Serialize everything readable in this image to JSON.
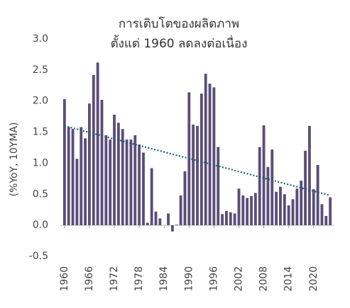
{
  "chart_data": {
    "type": "bar",
    "title": "การเติบโตของผลิตภาพ",
    "subtitle": "ตั้งแต่ 1960 ลดลงต่อเนื่อง",
    "y_label": "(%YoY, 10YMA)",
    "x": [
      1960,
      1961,
      1962,
      1963,
      1964,
      1965,
      1966,
      1967,
      1968,
      1969,
      1970,
      1971,
      1972,
      1973,
      1974,
      1975,
      1976,
      1977,
      1978,
      1979,
      1980,
      1981,
      1982,
      1983,
      1984,
      1985,
      1986,
      1987,
      1988,
      1989,
      1990,
      1991,
      1992,
      1993,
      1994,
      1995,
      1996,
      1997,
      1998,
      1999,
      2000,
      2001,
      2002,
      2003,
      2004,
      2005,
      2006,
      2007,
      2008,
      2009,
      2010,
      2011,
      2012,
      2013,
      2014,
      2015,
      2016,
      2017,
      2018,
      2019,
      2020,
      2021,
      2022,
      2023,
      2024
    ],
    "values": [
      2.03,
      1.58,
      1.55,
      1.07,
      1.58,
      1.4,
      1.96,
      2.42,
      2.62,
      2.02,
      1.45,
      1.38,
      1.78,
      1.65,
      1.55,
      1.38,
      1.38,
      1.45,
      1.3,
      1.17,
      0.04,
      0.92,
      0.22,
      0.11,
      0.0,
      0.19,
      -0.1,
      0.01,
      0.48,
      0.87,
      2.14,
      1.62,
      1.6,
      2.12,
      2.44,
      2.28,
      2.22,
      1.26,
      0.18,
      0.23,
      0.21,
      0.19,
      0.59,
      0.48,
      0.44,
      0.47,
      0.52,
      1.26,
      1.61,
      0.94,
      1.22,
      0.54,
      0.62,
      0.5,
      0.32,
      0.42,
      0.59,
      0.72,
      1.2,
      1.6,
      0.58,
      0.97,
      0.34,
      0.15,
      0.45
    ],
    "color": "#5a4e78",
    "trend": {
      "x": [
        1960,
        2024
      ],
      "values": [
        1.6,
        0.48
      ],
      "color": "#1e5f78"
    },
    "xlim": [
      1959,
      2025
    ],
    "xticks": [
      1960,
      1966,
      1972,
      1978,
      1984,
      1990,
      1996,
      2002,
      2008,
      2014,
      2020
    ],
    "ylim": [
      -0.5,
      3.0
    ],
    "yticks": [
      {
        "value": -0.5,
        "label": "-0.5"
      },
      {
        "value": 0,
        "label": "0.0"
      },
      {
        "value": 0.5,
        "label": "0.5"
      },
      {
        "value": 1,
        "label": "1.0"
      },
      {
        "value": 1.5,
        "label": "1.5"
      },
      {
        "value": 2,
        "label": "2.0"
      },
      {
        "value": 2.5,
        "label": "2.5"
      },
      {
        "value": 3,
        "label": "3.0"
      }
    ],
    "grid": false
  }
}
